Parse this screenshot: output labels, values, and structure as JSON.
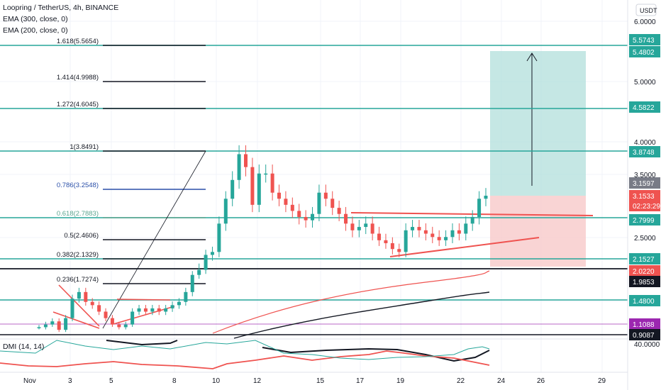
{
  "header": {
    "symbol": "Loopring / TetherUS, 4h, BINANCE",
    "ema300": "EMA (300, close, 0)",
    "ema200": "EMA (200, close, 0)",
    "dmi": "DMI (14, 14)"
  },
  "currency_badge": "USDT",
  "colors": {
    "green": "#26a69a",
    "red": "#ef5350",
    "black": "#131722",
    "blue": "#2962ff",
    "purple": "#9c27b0",
    "target_zone": "#b2dfdb",
    "stop_zone": "#f8c9c9",
    "fib_blue": "#2a4fa8",
    "fib_green": "#5aa58f"
  },
  "chart_data": {
    "type": "candlestick",
    "title": "Loopring / TetherUS, 4h, BINANCE",
    "y_axis_labels": [
      "6.0000",
      "5.0000",
      "4.0000",
      "3.5000",
      "2.5000",
      "40.0000"
    ],
    "x_axis_labels": [
      "Nov",
      "3",
      "5",
      "8",
      "10",
      "12",
      "15",
      "17",
      "19",
      "22",
      "24",
      "26",
      "29"
    ],
    "fib_levels": [
      {
        "label": "1.618(5.5654)",
        "value": 5.5654
      },
      {
        "label": "1.414(4.9988)",
        "value": 4.9988
      },
      {
        "label": "1.272(4.6045)",
        "value": 4.6045
      },
      {
        "label": "1(3.8491)",
        "value": 3.8491
      },
      {
        "label": "0.786(3.2548)",
        "value": 3.2548
      },
      {
        "label": "0.618(2.7883)",
        "value": 2.7883
      },
      {
        "label": "0.5(2.4606)",
        "value": 2.4606
      },
      {
        "label": "0.382(2.1329)",
        "value": 2.1329
      },
      {
        "label": "0.236(1.7274)",
        "value": 1.7274
      }
    ],
    "horizontal_levels": [
      5.5743,
      4.5822,
      3.8748,
      2.7999,
      2.1527,
      1.48
    ],
    "price_labels": [
      {
        "text": "5.5743",
        "kind": "green"
      },
      {
        "text": "5.4802",
        "kind": "green"
      },
      {
        "text": "4.5822",
        "kind": "green"
      },
      {
        "text": "3.8748",
        "kind": "green"
      },
      {
        "text": "3.1597",
        "kind": "gray"
      },
      {
        "text": "3.1533",
        "kind": "red"
      },
      {
        "text": "02:23:29",
        "kind": "red"
      },
      {
        "text": "2.7999",
        "kind": "green"
      },
      {
        "text": "2.1527",
        "kind": "green"
      },
      {
        "text": "2.0220",
        "kind": "red"
      },
      {
        "text": "1.9853",
        "kind": "black"
      },
      {
        "text": "1.4800",
        "kind": "green"
      },
      {
        "text": "1.1088",
        "kind": "purple"
      },
      {
        "text": "0.9087",
        "kind": "black"
      }
    ],
    "current_price": 3.1533,
    "last_price": 3.1597,
    "countdown": "02:23:29",
    "ema200_last": 2.022,
    "ema300_last": 1.9853,
    "position": {
      "entry": 3.1533,
      "target": 5.4802,
      "stop": 2.022
    },
    "price_path": [
      1.05,
      1.1,
      1.15,
      1.0,
      1.2,
      1.5,
      1.6,
      1.45,
      1.4,
      1.3,
      1.2,
      1.1,
      1.05,
      1.1,
      1.3,
      1.35,
      1.3,
      1.35,
      1.3,
      1.35,
      1.4,
      1.45,
      1.6,
      1.9,
      2.0,
      2.2,
      2.25,
      2.7,
      3.1,
      3.4,
      3.8,
      3.6,
      3.0,
      3.5,
      3.5,
      3.2,
      3.1,
      3.0,
      2.9,
      2.8,
      2.75,
      2.85,
      3.2,
      3.1,
      2.95,
      2.85,
      2.7,
      2.6,
      2.65,
      2.7,
      2.55,
      2.45,
      2.4,
      2.3,
      2.25,
      2.6,
      2.65,
      2.6,
      2.55,
      2.5,
      2.45,
      2.5,
      2.6,
      2.55,
      2.7,
      2.8,
      3.1,
      3.15
    ]
  }
}
